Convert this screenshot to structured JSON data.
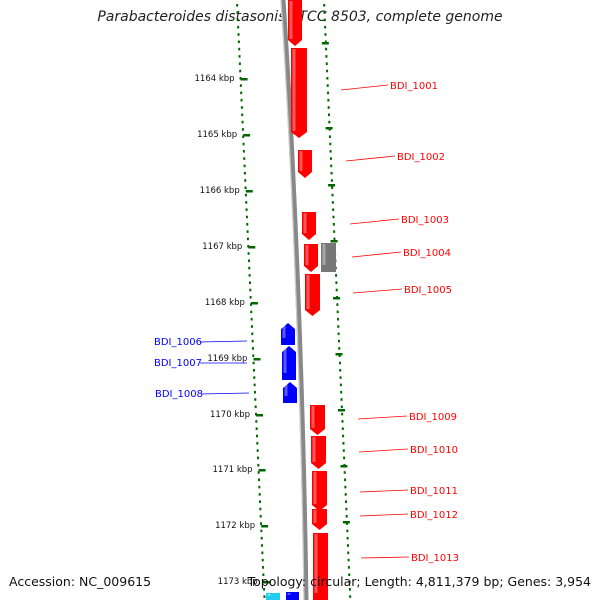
{
  "title": "Parabacteroides distasonis ATCC 8503, complete genome",
  "footer": {
    "accession": "Accession: NC_009615",
    "summary": "Topology: circular; Length: 4,811,379 bp; Genes: 3,954"
  },
  "colors": {
    "forward_gene": "#ff0000",
    "reverse_gene": "#0000ff",
    "other_gene": "#777777",
    "cyan_gene": "#22ccee",
    "backbone": "#888888",
    "ticks": "#006600"
  },
  "axis_labels": [
    "1164 kbp",
    "1165 kbp",
    "1166 kbp",
    "1167 kbp",
    "1168 kbp",
    "1169 kbp",
    "1170 kbp",
    "1171 kbp",
    "1172 kbp",
    "1173 kbp"
  ],
  "gene_labels": [
    {
      "name": "BDI_1001",
      "strand": "forward"
    },
    {
      "name": "BDI_1002",
      "strand": "forward"
    },
    {
      "name": "BDI_1003",
      "strand": "forward"
    },
    {
      "name": "BDI_1004",
      "strand": "forward"
    },
    {
      "name": "BDI_1005",
      "strand": "forward"
    },
    {
      "name": "BDI_1006",
      "strand": "reverse"
    },
    {
      "name": "BDI_1007",
      "strand": "reverse"
    },
    {
      "name": "BDI_1008",
      "strand": "reverse"
    },
    {
      "name": "BDI_1009",
      "strand": "forward"
    },
    {
      "name": "BDI_1010",
      "strand": "forward"
    },
    {
      "name": "BDI_1011",
      "strand": "forward"
    },
    {
      "name": "BDI_1012",
      "strand": "forward"
    },
    {
      "name": "BDI_1013",
      "strand": "forward"
    }
  ]
}
